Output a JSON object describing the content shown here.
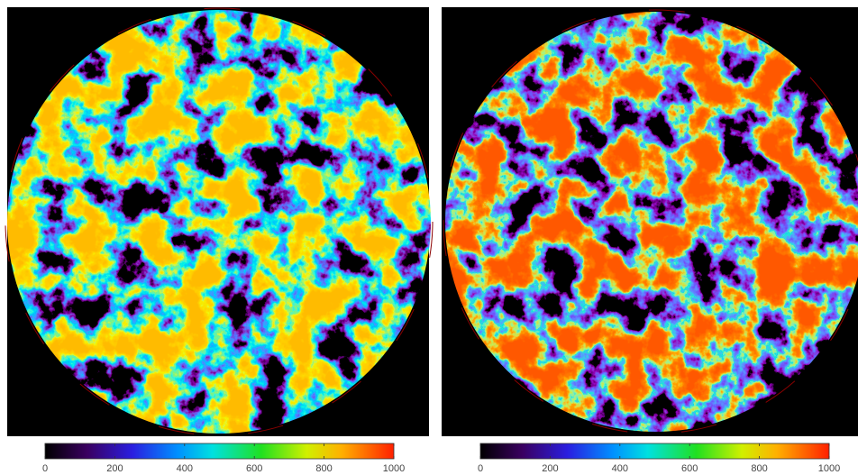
{
  "panels": [
    {
      "colorbar": {
        "lim": [
          0,
          1000
        ],
        "ticks": [
          0,
          200,
          400,
          600,
          800,
          1000
        ]
      }
    },
    {
      "colorbar": {
        "lim": [
          0,
          1000
        ],
        "ticks": [
          0,
          200,
          400,
          600,
          800,
          1000
        ]
      }
    }
  ]
}
